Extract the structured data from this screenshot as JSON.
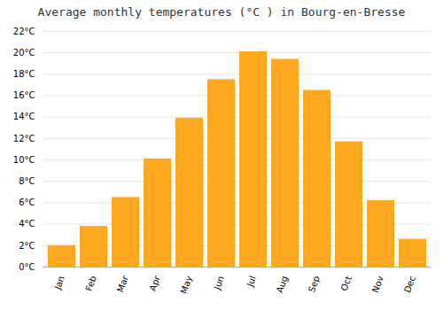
{
  "chart_data": {
    "type": "bar",
    "title": "Average monthly temperatures (°C ) in Bourg-en-Bresse",
    "categories": [
      "Jan",
      "Feb",
      "Mar",
      "Apr",
      "May",
      "Jun",
      "Jul",
      "Aug",
      "Sep",
      "Oct",
      "Nov",
      "Dec"
    ],
    "values": [
      2.0,
      3.8,
      6.5,
      10.1,
      13.9,
      17.5,
      20.1,
      19.4,
      16.5,
      11.7,
      6.2,
      2.6
    ],
    "color": "#FFA820",
    "ylim": [
      0,
      22
    ],
    "yticks": [
      {
        "value": 0,
        "label": "0°C"
      },
      {
        "value": 2,
        "label": "2°C"
      },
      {
        "value": 4,
        "label": "4°C"
      },
      {
        "value": 6,
        "label": "6°C"
      },
      {
        "value": 8,
        "label": "8°C"
      },
      {
        "value": 10,
        "label": "10°C"
      },
      {
        "value": 12,
        "label": "12°C"
      },
      {
        "value": 14,
        "label": "14°C"
      },
      {
        "value": 16,
        "label": "16°C"
      },
      {
        "value": 18,
        "label": "18°C"
      },
      {
        "value": 20,
        "label": "20°C"
      },
      {
        "value": 22,
        "label": "22°C"
      }
    ],
    "grid": true
  }
}
